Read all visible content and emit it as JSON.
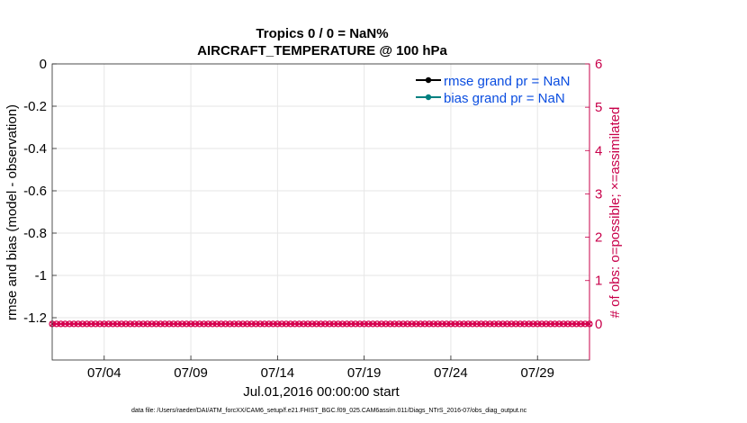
{
  "chart_data": {
    "type": "line",
    "title": "Tropics 0 / 0 = NaN%",
    "subtitle": "AIRCRAFT_TEMPERATURE @ 100 hPa",
    "xlabel": "Jul.01,2016 00:00:00 start",
    "ylabel": "rmse and bias (model - observation)",
    "y2label": "# of obs: o=possible; ×=assimilated",
    "x_ticks": [
      "07/04",
      "07/09",
      "07/14",
      "07/19",
      "07/24",
      "07/29"
    ],
    "x_tick_days": [
      4,
      9,
      14,
      19,
      24,
      29
    ],
    "xlim": [
      1,
      32
    ],
    "ylim": [
      -1.4,
      0
    ],
    "y_ticks": [
      "0",
      "-0.2",
      "-0.4",
      "-0.6",
      "-0.8",
      "-1",
      "-1.2"
    ],
    "y_tick_values": [
      0,
      -0.2,
      -0.4,
      -0.6,
      -0.8,
      -1,
      -1.2
    ],
    "y2lim": [
      -0.833,
      6
    ],
    "y2_ticks": [
      "6",
      "5",
      "4",
      "3",
      "2",
      "1",
      "0"
    ],
    "y2_tick_values": [
      6,
      5,
      4,
      3,
      2,
      1,
      0
    ],
    "grid": true,
    "legend_position": "top-right",
    "series": [
      {
        "name": "rmse grand pr = NaN",
        "color": "#000000",
        "values": []
      },
      {
        "name": "bias grand pr = NaN",
        "color": "#008080",
        "values": []
      },
      {
        "name": "obs possible",
        "color": "#d6004f",
        "axis": "right",
        "marker": "o",
        "x_start": 1,
        "x_step": 0.25,
        "count": 125,
        "value": 0
      },
      {
        "name": "obs assimilated",
        "color": "#d6004f",
        "axis": "right",
        "marker": "x",
        "x_start": 1,
        "x_step": 0.25,
        "count": 125,
        "value": 0
      }
    ],
    "footnote": "data file: /Users/raeder/DAI/ATM_forcXX/CAM6_setup/f.e21.FHIST_BGC.f09_025.CAM6assim.011/Diags_NTrS_2016-07/obs_diag_output.nc"
  },
  "colors": {
    "left_axis": "#000000",
    "right_axis": "#c8004a",
    "grid": "#e6e6e6",
    "legend_text": "#0a4de0"
  }
}
